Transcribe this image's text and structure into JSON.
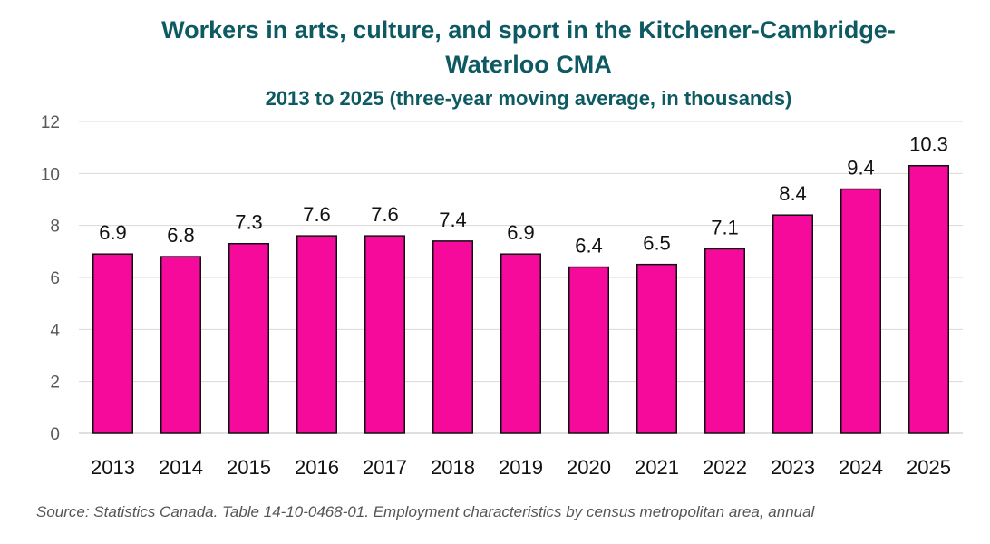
{
  "chart_data": {
    "type": "bar",
    "title_line1": "Workers in arts, culture, and sport in the Kitchener-Cambridge-",
    "title_line2": "Waterloo CMA",
    "subtitle": "2013 to 2025 (three-year moving average, in thousands)",
    "categories": [
      "2013",
      "2014",
      "2015",
      "2016",
      "2017",
      "2018",
      "2019",
      "2020",
      "2021",
      "2022",
      "2023",
      "2024",
      "2025"
    ],
    "values": [
      6.9,
      6.8,
      7.3,
      7.6,
      7.6,
      7.4,
      6.9,
      6.4,
      6.5,
      7.1,
      8.4,
      9.4,
      10.3
    ],
    "data_labels": [
      "6.9",
      "6.8",
      "7.3",
      "7.6",
      "7.6",
      "7.4",
      "6.9",
      "6.4",
      "6.5",
      "7.1",
      "8.4",
      "9.4",
      "10.3"
    ],
    "yticks": [
      "0",
      "2",
      "4",
      "6",
      "8",
      "10",
      "12"
    ],
    "ylim": [
      0,
      12
    ],
    "xlabel": "",
    "ylabel": "",
    "grid": true,
    "bar_color": "#f50a9b",
    "title_color": "#0d5a63"
  },
  "source": "Source: Statistics Canada. Table 14-10-0468-01. Employment characteristics by census metropolitan area, annual"
}
